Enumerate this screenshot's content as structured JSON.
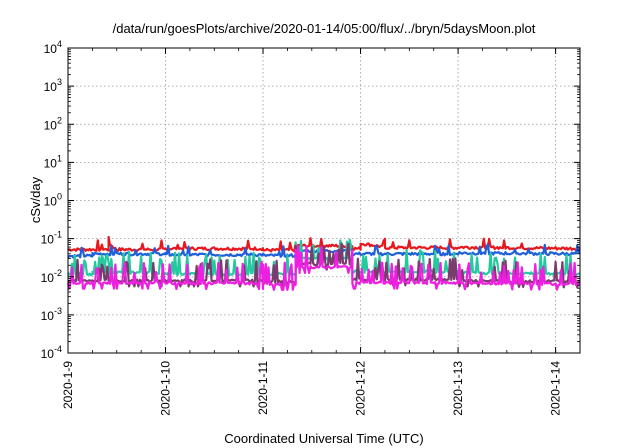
{
  "chart_data": {
    "type": "line",
    "title": "/data/run/goesPlots/archive/2020-01-14/05:00/flux/../bryn/5daysMoon.plot",
    "xlabel": "Coordinated Universal Time (UTC)",
    "ylabel": "cSv/day",
    "yscale": "log",
    "ylim": [
      0.0001,
      10000
    ],
    "y_ticks": [
      {
        "base": "10",
        "exp": "-4",
        "value": 0.0001
      },
      {
        "base": "10",
        "exp": "-3",
        "value": 0.001
      },
      {
        "base": "10",
        "exp": "-2",
        "value": 0.01
      },
      {
        "base": "10",
        "exp": "-1",
        "value": 0.1
      },
      {
        "base": "10",
        "exp": "0",
        "value": 1
      },
      {
        "base": "10",
        "exp": "1",
        "value": 10
      },
      {
        "base": "10",
        "exp": "2",
        "value": 100
      },
      {
        "base": "10",
        "exp": "3",
        "value": 1000
      },
      {
        "base": "10",
        "exp": "4",
        "value": 10000
      }
    ],
    "xlim": [
      "2020-01-09",
      "2020-01-14 06:00"
    ],
    "x_ticks": [
      "2020-1-9",
      "2020-1-10",
      "2020-1-11",
      "2020-1-12",
      "2020-1-13",
      "2020-1-14"
    ],
    "grid": true,
    "series": [
      {
        "color": "#e8171d",
        "segments": [
          {
            "x": [
              "2020-01-09 00:00",
              "2020-01-09 10:00"
            ],
            "y": [
              0.052,
              0.052
            ]
          },
          {
            "x": [
              "2020-01-09 10:00",
              "2020-01-09 12:00"
            ],
            "y": [
              0.075,
              0.05
            ]
          },
          {
            "x": [
              "2020-01-09 12:00",
              "2020-01-10 00:00"
            ],
            "y": [
              0.052,
              0.052
            ]
          },
          {
            "x": [
              "2020-01-10 00:00",
              "2020-01-11 00:00"
            ],
            "y": [
              0.055,
              0.055
            ]
          },
          {
            "x": [
              "2020-01-11 00:00",
              "2020-01-11 08:00"
            ],
            "y": [
              0.05,
              0.05
            ]
          },
          {
            "x": [
              "2020-01-11 08:00",
              "2020-01-11 22:00"
            ],
            "y": [
              0.065,
              0.065
            ]
          },
          {
            "x": [
              "2020-01-11 22:00",
              "2020-01-12 00:00"
            ],
            "y": [
              0.055,
              0.055
            ]
          },
          {
            "x": [
              "2020-01-12 00:00",
              "2020-01-12 06:00"
            ],
            "y": [
              0.075,
              0.06
            ]
          },
          {
            "x": [
              "2020-01-12 06:00",
              "2020-01-13 00:00"
            ],
            "y": [
              0.058,
              0.058
            ]
          },
          {
            "x": [
              "2020-01-13 00:00",
              "2020-01-14 06:00"
            ],
            "y": [
              0.06,
              0.055
            ]
          }
        ]
      },
      {
        "color": "#1f5fd9",
        "segments": [
          {
            "x": [
              "2020-01-09 00:00",
              "2020-01-09 06:00"
            ],
            "y": [
              0.035,
              0.035
            ]
          },
          {
            "x": [
              "2020-01-09 06:00",
              "2020-01-10 00:00"
            ],
            "y": [
              0.04,
              0.04
            ]
          },
          {
            "x": [
              "2020-01-10 00:00",
              "2020-01-11 00:00"
            ],
            "y": [
              0.038,
              0.038
            ]
          },
          {
            "x": [
              "2020-01-11 00:00",
              "2020-01-11 08:00"
            ],
            "y": [
              0.036,
              0.036
            ]
          },
          {
            "x": [
              "2020-01-11 08:00",
              "2020-01-11 22:00"
            ],
            "y": [
              0.048,
              0.048
            ]
          },
          {
            "x": [
              "2020-01-11 22:00",
              "2020-01-13 00:00"
            ],
            "y": [
              0.04,
              0.04
            ]
          },
          {
            "x": [
              "2020-01-13 00:00",
              "2020-01-14 06:00"
            ],
            "y": [
              0.042,
              0.04
            ]
          }
        ]
      },
      {
        "color": "#25c9a0",
        "segments": [
          {
            "x": [
              "2020-01-09 00:00",
              "2020-01-09 06:00"
            ],
            "y": [
              0.012,
              0.012
            ]
          },
          {
            "x": [
              "2020-01-09 06:00",
              "2020-01-10 00:00"
            ],
            "y": [
              0.013,
              0.013
            ]
          },
          {
            "x": [
              "2020-01-10 00:00",
              "2020-01-11 00:00"
            ],
            "y": [
              0.012,
              0.012
            ]
          },
          {
            "x": [
              "2020-01-11 00:00",
              "2020-01-11 08:00"
            ],
            "y": [
              0.012,
              0.012
            ]
          },
          {
            "x": [
              "2020-01-11 08:00",
              "2020-01-11 22:00"
            ],
            "y": [
              0.03,
              0.03
            ]
          },
          {
            "x": [
              "2020-01-11 22:00",
              "2020-01-13 00:00"
            ],
            "y": [
              0.014,
              0.014
            ]
          },
          {
            "x": [
              "2020-01-13 00:00",
              "2020-01-14 06:00"
            ],
            "y": [
              0.013,
              0.012
            ]
          }
        ]
      },
      {
        "color": "#7a3b6e",
        "segments": [
          {
            "x": [
              "2020-01-09 00:00",
              "2020-01-10 00:00"
            ],
            "y": [
              0.008,
              0.008
            ]
          },
          {
            "x": [
              "2020-01-10 00:00",
              "2020-01-11 00:00"
            ],
            "y": [
              0.008,
              0.008
            ]
          },
          {
            "x": [
              "2020-01-11 00:00",
              "2020-01-11 08:00"
            ],
            "y": [
              0.0075,
              0.0075
            ]
          },
          {
            "x": [
              "2020-01-11 08:00",
              "2020-01-11 22:00"
            ],
            "y": [
              0.022,
              0.022
            ]
          },
          {
            "x": [
              "2020-01-11 22:00",
              "2020-01-13 00:00"
            ],
            "y": [
              0.0085,
              0.0085
            ]
          },
          {
            "x": [
              "2020-01-13 00:00",
              "2020-01-14 06:00"
            ],
            "y": [
              0.008,
              0.0075
            ]
          }
        ]
      },
      {
        "color": "#ee1fe0",
        "segments": [
          {
            "x": [
              "2020-01-09 00:00",
              "2020-01-10 00:00"
            ],
            "y": [
              0.007,
              0.007
            ]
          },
          {
            "x": [
              "2020-01-10 00:00",
              "2020-01-11 00:00"
            ],
            "y": [
              0.0068,
              0.0068
            ]
          },
          {
            "x": [
              "2020-01-11 00:00",
              "2020-01-11 08:00"
            ],
            "y": [
              0.0065,
              0.0065
            ]
          },
          {
            "x": [
              "2020-01-11 08:00",
              "2020-01-11 22:00"
            ],
            "y": [
              0.018,
              0.018
            ]
          },
          {
            "x": [
              "2020-01-11 22:00",
              "2020-01-13 00:00"
            ],
            "y": [
              0.007,
              0.007
            ]
          },
          {
            "x": [
              "2020-01-13 00:00",
              "2020-01-14 06:00"
            ],
            "y": [
              0.0068,
              0.0065
            ]
          }
        ]
      }
    ]
  }
}
